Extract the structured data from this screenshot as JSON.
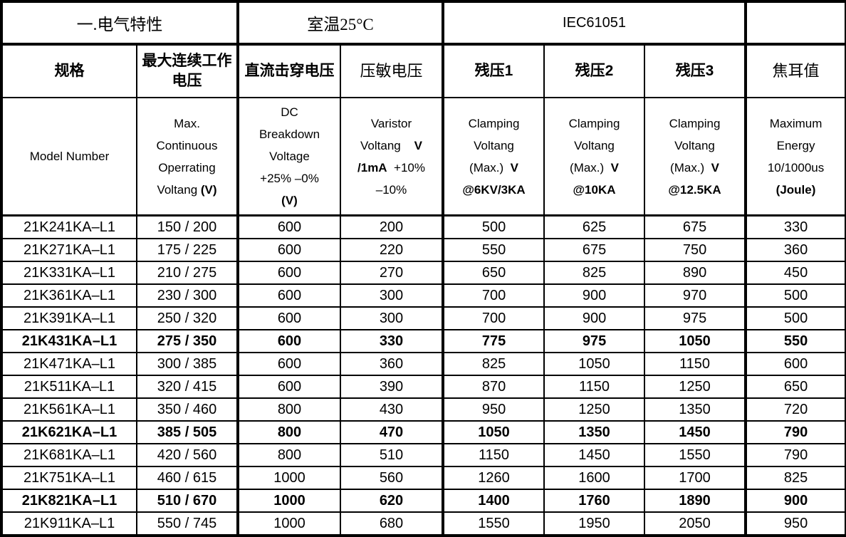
{
  "table": {
    "top_header": {
      "section_title": "一.电气特性",
      "room_temp": "室温25°C",
      "standard": "IEC61051",
      "blank": ""
    },
    "cn_headers": [
      {
        "text": "规格"
      },
      {
        "text": "最大连续工作电压"
      },
      {
        "text": "直流击穿电压"
      },
      {
        "text": "压敏电压"
      },
      {
        "text": "残压1"
      },
      {
        "text": "残压2"
      },
      {
        "text": "残压3"
      },
      {
        "text": "焦耳值"
      }
    ],
    "en_headers": [
      {
        "lines": [
          [
            {
              "t": "Model Number",
              "b": false
            }
          ]
        ]
      },
      {
        "lines": [
          [
            {
              "t": "Max.",
              "b": false
            }
          ],
          [
            {
              "t": "Continuous",
              "b": false
            }
          ],
          [
            {
              "t": "Operrating",
              "b": false
            }
          ],
          [
            {
              "t": "Voltang ",
              "b": false
            },
            {
              "t": "(V)",
              "b": true
            }
          ]
        ]
      },
      {
        "lines": [
          [
            {
              "t": "DC",
              "b": false
            }
          ],
          [
            {
              "t": "Breakdown",
              "b": false
            }
          ],
          [
            {
              "t": "Voltage",
              "b": false
            }
          ],
          [
            {
              "t": "+25% –0%",
              "b": false
            }
          ],
          [
            {
              "t": "(V)",
              "b": true
            }
          ]
        ]
      },
      {
        "lines": [
          [
            {
              "t": "Varistor",
              "b": false
            }
          ],
          [
            {
              "t": "Voltang    ",
              "b": false
            },
            {
              "t": "V",
              "b": true
            }
          ],
          [
            {
              "t": "/1mA",
              "b": true
            },
            {
              "t": "  +10%",
              "b": false
            }
          ],
          [
            {
              "t": "–10%",
              "b": false
            }
          ]
        ]
      },
      {
        "lines": [
          [
            {
              "t": "Clamping",
              "b": false
            }
          ],
          [
            {
              "t": "Voltang",
              "b": false
            }
          ],
          [
            {
              "t": "(Max.)  ",
              "b": false
            },
            {
              "t": "V",
              "b": true
            }
          ],
          [
            {
              "t": "@6KV/3KA",
              "b": true
            }
          ]
        ]
      },
      {
        "lines": [
          [
            {
              "t": "Clamping",
              "b": false
            }
          ],
          [
            {
              "t": "Voltang",
              "b": false
            }
          ],
          [
            {
              "t": "(Max.)  ",
              "b": false
            },
            {
              "t": "V",
              "b": true
            }
          ],
          [
            {
              "t": "@10KA",
              "b": true
            }
          ]
        ]
      },
      {
        "lines": [
          [
            {
              "t": "Clamping",
              "b": false
            }
          ],
          [
            {
              "t": "Voltang",
              "b": false
            }
          ],
          [
            {
              "t": "(Max.)  ",
              "b": false
            },
            {
              "t": "V",
              "b": true
            }
          ],
          [
            {
              "t": "@12.5KA",
              "b": true
            }
          ]
        ]
      },
      {
        "lines": [
          [
            {
              "t": "Maximum",
              "b": false
            }
          ],
          [
            {
              "t": "Energy",
              "b": false
            }
          ],
          [
            {
              "t": "10/1000us",
              "b": false
            }
          ],
          [
            {
              "t": "(Joule)",
              "b": true
            }
          ]
        ]
      }
    ],
    "rows": [
      {
        "bold": false,
        "cells": [
          "21K241KA–L1",
          "150 / 200",
          "600",
          "200",
          "500",
          "625",
          "675",
          "330"
        ]
      },
      {
        "bold": false,
        "cells": [
          "21K271KA–L1",
          "175 / 225",
          "600",
          "220",
          "550",
          "675",
          "750",
          "360"
        ]
      },
      {
        "bold": false,
        "cells": [
          "21K331KA–L1",
          "210 / 275",
          "600",
          "270",
          "650",
          "825",
          "890",
          "450"
        ]
      },
      {
        "bold": false,
        "cells": [
          "21K361KA–L1",
          "230 / 300",
          "600",
          "300",
          "700",
          "900",
          "970",
          "500"
        ]
      },
      {
        "bold": false,
        "cells": [
          "21K391KA–L1",
          "250 / 320",
          "600",
          "300",
          "700",
          "900",
          "975",
          "500"
        ]
      },
      {
        "bold": true,
        "cells": [
          "21K431KA–L1",
          "275 / 350",
          "600",
          "330",
          "775",
          "975",
          "1050",
          "550"
        ]
      },
      {
        "bold": false,
        "cells": [
          "21K471KA–L1",
          "300 / 385",
          "600",
          "360",
          "825",
          "1050",
          "1150",
          "600"
        ]
      },
      {
        "bold": false,
        "cells": [
          "21K511KA–L1",
          "320 / 415",
          "600",
          "390",
          "870",
          "1150",
          "1250",
          "650"
        ]
      },
      {
        "bold": false,
        "cells": [
          "21K561KA–L1",
          "350 / 460",
          "800",
          "430",
          "950",
          "1250",
          "1350",
          "720"
        ]
      },
      {
        "bold": true,
        "cells": [
          "21K621KA–L1",
          "385 / 505",
          "800",
          "470",
          "1050",
          "1350",
          "1450",
          "790"
        ]
      },
      {
        "bold": false,
        "cells": [
          "21K681KA–L1",
          "420 / 560",
          "800",
          "510",
          "1150",
          "1450",
          "1550",
          "790"
        ]
      },
      {
        "bold": false,
        "cells": [
          "21K751KA–L1",
          "460 / 615",
          "1000",
          "560",
          "1260",
          "1600",
          "1700",
          "825"
        ]
      },
      {
        "bold": true,
        "cells": [
          "21K821KA–L1",
          "510 / 670",
          "1000",
          "620",
          "1400",
          "1760",
          "1890",
          "900"
        ]
      },
      {
        "bold": false,
        "cells": [
          "21K911KA–L1",
          "550 / 745",
          "1000",
          "680",
          "1550",
          "1950",
          "2050",
          "950"
        ]
      }
    ]
  }
}
